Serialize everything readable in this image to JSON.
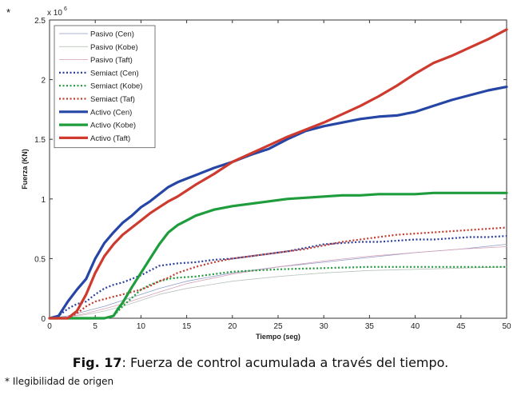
{
  "marker": "*",
  "caption": {
    "label": "Fig. 17",
    "text": ": Fuerza de control acumulada a través del tiempo."
  },
  "footnote": "* Ilegibilidad de origen",
  "chart_data": {
    "type": "line",
    "title": "",
    "xlabel": "Tiempo (seg)",
    "ylabel": "Fuerza (KN)",
    "y_multiplier": "x 10",
    "y_exponent": "6",
    "xlim": [
      0,
      50
    ],
    "ylim": [
      0,
      2.5
    ],
    "xticks": [
      0,
      5,
      10,
      15,
      20,
      25,
      30,
      35,
      40,
      45,
      50
    ],
    "yticks": [
      0,
      0.5,
      1,
      1.5,
      2,
      2.5
    ],
    "ytick_labels": [
      "0",
      "0.5",
      "1",
      "1.5",
      "2",
      "2.5"
    ],
    "legend_position": "top-left",
    "series": [
      {
        "name": "Pasivo (Cen)",
        "color": "#8f9bc8",
        "style": "thin",
        "x": [
          0,
          2,
          4,
          6,
          8,
          10,
          12,
          15,
          20,
          25,
          30,
          35,
          40,
          45,
          50
        ],
        "y": [
          0,
          0.02,
          0.06,
          0.1,
          0.15,
          0.2,
          0.25,
          0.31,
          0.38,
          0.43,
          0.47,
          0.51,
          0.55,
          0.58,
          0.62
        ]
      },
      {
        "name": "Pasivo (Kobe)",
        "color": "#b9c3b9",
        "style": "thin",
        "x": [
          0,
          2,
          4,
          6,
          8,
          10,
          12,
          15,
          20,
          25,
          30,
          35,
          40,
          45,
          50
        ],
        "y": [
          0,
          0.01,
          0.03,
          0.06,
          0.1,
          0.15,
          0.2,
          0.25,
          0.31,
          0.35,
          0.38,
          0.4,
          0.41,
          0.42,
          0.43
        ]
      },
      {
        "name": "Pasivo (Taft)",
        "color": "#d8a0b6",
        "style": "thin",
        "x": [
          0,
          2,
          4,
          6,
          8,
          10,
          12,
          15,
          20,
          25,
          30,
          35,
          40,
          45,
          50
        ],
        "y": [
          0,
          0.01,
          0.04,
          0.08,
          0.12,
          0.17,
          0.22,
          0.29,
          0.37,
          0.43,
          0.48,
          0.52,
          0.55,
          0.58,
          0.6
        ]
      },
      {
        "name": "Semiact (Cen)",
        "color": "#2a3f9e",
        "style": "dotted",
        "x": [
          0,
          1,
          2,
          3,
          4,
          5,
          6,
          7,
          8,
          9,
          10,
          11,
          12,
          14,
          16,
          18,
          20,
          22,
          24,
          26,
          28,
          30,
          32,
          34,
          36,
          38,
          40,
          42,
          44,
          46,
          48,
          50
        ],
        "y": [
          0,
          0.02,
          0.08,
          0.12,
          0.14,
          0.2,
          0.25,
          0.28,
          0.3,
          0.33,
          0.36,
          0.4,
          0.44,
          0.46,
          0.47,
          0.49,
          0.5,
          0.52,
          0.54,
          0.56,
          0.59,
          0.62,
          0.63,
          0.64,
          0.64,
          0.65,
          0.66,
          0.66,
          0.67,
          0.68,
          0.68,
          0.69
        ]
      },
      {
        "name": "Semiact (Kobe)",
        "color": "#1e9a3a",
        "style": "dotted",
        "x": [
          0,
          6,
          7,
          8,
          9,
          10,
          11,
          12,
          13,
          14,
          16,
          18,
          20,
          25,
          30,
          35,
          40,
          45,
          50
        ],
        "y": [
          0,
          0,
          0.02,
          0.1,
          0.17,
          0.24,
          0.28,
          0.31,
          0.33,
          0.34,
          0.35,
          0.37,
          0.39,
          0.41,
          0.42,
          0.43,
          0.43,
          0.43,
          0.43
        ]
      },
      {
        "name": "Semiact (Taf)",
        "color": "#c43a2c",
        "style": "dotted",
        "x": [
          0,
          2,
          3,
          4,
          5,
          6,
          7,
          8,
          9,
          10,
          11,
          12,
          13,
          14,
          16,
          18,
          20,
          22,
          24,
          26,
          28,
          30,
          32,
          34,
          36,
          38,
          40,
          42,
          44,
          46,
          48,
          50
        ],
        "y": [
          0,
          0,
          0.04,
          0.1,
          0.14,
          0.16,
          0.18,
          0.2,
          0.22,
          0.24,
          0.27,
          0.31,
          0.34,
          0.38,
          0.43,
          0.47,
          0.5,
          0.52,
          0.54,
          0.56,
          0.58,
          0.61,
          0.64,
          0.66,
          0.68,
          0.7,
          0.71,
          0.72,
          0.73,
          0.74,
          0.75,
          0.76
        ]
      },
      {
        "name": "Activo (Cen)",
        "color": "#2646a6",
        "style": "solid",
        "x": [
          0,
          1,
          2,
          3,
          4,
          5,
          6,
          7,
          8,
          9,
          10,
          11,
          12,
          13,
          14,
          15,
          16,
          18,
          20,
          22,
          24,
          26,
          28,
          30,
          32,
          34,
          36,
          38,
          40,
          42,
          44,
          46,
          48,
          50
        ],
        "y": [
          0,
          0.02,
          0.14,
          0.24,
          0.33,
          0.5,
          0.63,
          0.72,
          0.8,
          0.86,
          0.93,
          0.98,
          1.04,
          1.1,
          1.14,
          1.17,
          1.2,
          1.26,
          1.31,
          1.37,
          1.42,
          1.5,
          1.57,
          1.61,
          1.64,
          1.67,
          1.69,
          1.7,
          1.73,
          1.78,
          1.83,
          1.87,
          1.91,
          1.94
        ]
      },
      {
        "name": "Activo (Kobe)",
        "color": "#1f9d3d",
        "style": "solid",
        "x": [
          0,
          6,
          7,
          7.5,
          8,
          9,
          10,
          11,
          12,
          13,
          14,
          15,
          16,
          18,
          20,
          22,
          24,
          26,
          28,
          30,
          32,
          34,
          36,
          38,
          40,
          42,
          44,
          46,
          48,
          50
        ],
        "y": [
          0,
          0,
          0.02,
          0.08,
          0.13,
          0.26,
          0.38,
          0.5,
          0.62,
          0.72,
          0.78,
          0.82,
          0.86,
          0.91,
          0.94,
          0.96,
          0.98,
          1.0,
          1.01,
          1.02,
          1.03,
          1.03,
          1.04,
          1.04,
          1.04,
          1.05,
          1.05,
          1.05,
          1.05,
          1.05
        ]
      },
      {
        "name": "Activo (Taft)",
        "color": "#cf3a2e",
        "style": "solid",
        "x": [
          0,
          2,
          3,
          4,
          5,
          6,
          7,
          8,
          9,
          10,
          11,
          12,
          13,
          14,
          15,
          16,
          18,
          20,
          22,
          24,
          26,
          28,
          30,
          32,
          34,
          36,
          38,
          40,
          42,
          44,
          46,
          48,
          50
        ],
        "y": [
          0,
          0,
          0.06,
          0.2,
          0.38,
          0.52,
          0.62,
          0.7,
          0.76,
          0.82,
          0.88,
          0.93,
          0.98,
          1.02,
          1.07,
          1.12,
          1.21,
          1.31,
          1.38,
          1.45,
          1.52,
          1.58,
          1.64,
          1.71,
          1.78,
          1.86,
          1.95,
          2.05,
          2.14,
          2.2,
          2.27,
          2.34,
          2.42
        ]
      }
    ]
  }
}
